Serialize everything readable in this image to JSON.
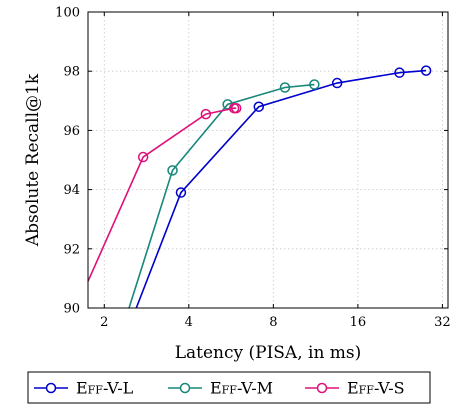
{
  "chart_data": {
    "type": "line",
    "xlabel": "Latency (PISA, in ms)",
    "ylabel": "Absolute Recall@1k",
    "x_scale": "log2",
    "xlim": [
      1.75,
      33.5
    ],
    "ylim": [
      90,
      100
    ],
    "x_ticks": [
      2,
      4,
      8,
      16,
      32
    ],
    "x_tick_labels": [
      "2",
      "4",
      "8",
      "16",
      "32"
    ],
    "y_ticks": [
      90,
      92,
      94,
      96,
      98,
      100
    ],
    "y_tick_labels": [
      "90",
      "92",
      "94",
      "96",
      "98",
      "100"
    ],
    "grid": true,
    "legend_position": "bottom",
    "series": [
      {
        "name": "Eff-V-L",
        "color": "#0000cc",
        "points": [
          [
            3.75,
            93.9
          ],
          [
            7.1,
            96.8
          ],
          [
            13.5,
            97.6
          ],
          [
            22.5,
            97.95
          ],
          [
            28.0,
            98.02
          ]
        ],
        "entry": [
          2.6,
          90.0
        ]
      },
      {
        "name": "Eff-V-M",
        "color": "#17877a",
        "points": [
          [
            3.5,
            94.65
          ],
          [
            5.5,
            96.88
          ],
          [
            8.8,
            97.45
          ],
          [
            11.2,
            97.55
          ]
        ],
        "entry": [
          2.45,
          90.0
        ]
      },
      {
        "name": "Eff-V-S",
        "color": "#e0107a",
        "points": [
          [
            2.75,
            95.1
          ],
          [
            4.6,
            96.55
          ],
          [
            5.8,
            96.75
          ],
          [
            5.9,
            96.75
          ]
        ],
        "entry": [
          1.75,
          90.9
        ]
      }
    ]
  }
}
